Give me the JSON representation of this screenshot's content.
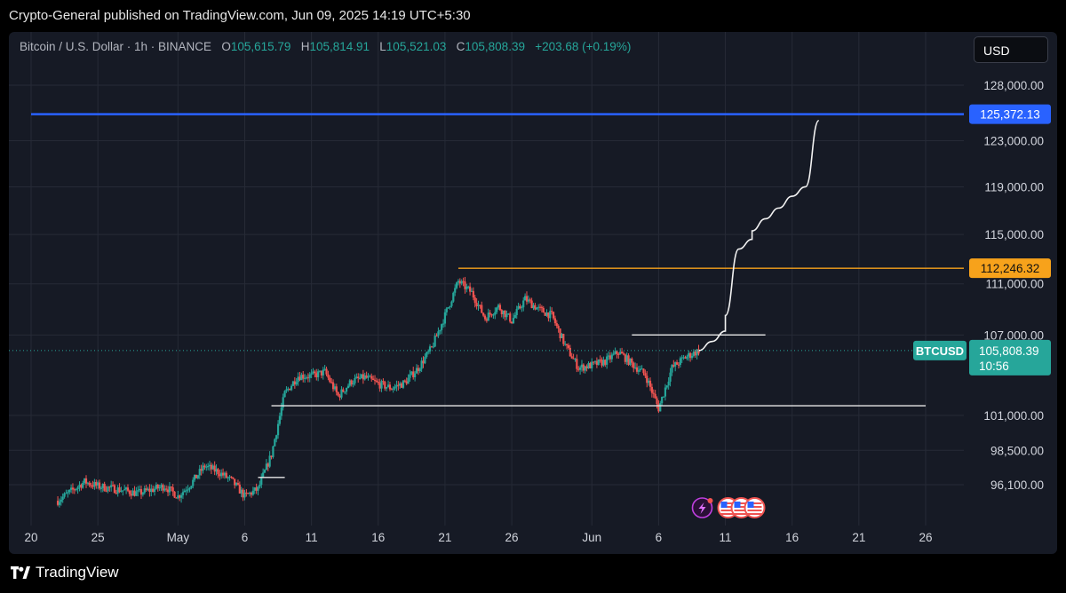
{
  "header": {
    "published": "Crypto-General published on TradingView.com, Jun 09, 2025 14:19 UTC+5:30"
  },
  "legend": {
    "symbol": "Bitcoin / U.S. Dollar · 1h · BINANCE",
    "o_label": "O",
    "o_value": "105,615.79",
    "h_label": "H",
    "h_value": "105,814.91",
    "l_label": "L",
    "l_value": "105,521.03",
    "c_label": "C",
    "c_value": "105,808.39",
    "change": "+203.68 (+0.19%)"
  },
  "currency_button": "USD",
  "footer": {
    "brand": "TradingView"
  },
  "colors": {
    "panel_bg": "#161a25",
    "up": "#26a69a",
    "down": "#ef5350",
    "blue_line": "#2962ff",
    "orange_line": "#f7a21b",
    "grid": "#262a36"
  },
  "chart_data": {
    "type": "candlestick",
    "symbol": "BTCUSD",
    "interval": "1h",
    "y_scale": "log",
    "ylim": [
      94000,
      131000
    ],
    "price_ticks": [
      "128,000.00",
      "123,000.00",
      "119,000.00",
      "115,000.00",
      "111,000.00",
      "107,000.00",
      "101,000.00",
      "98,500.00",
      "96,100.00"
    ],
    "price_tick_values": [
      128000,
      123000,
      119000,
      115000,
      111000,
      107000,
      101000,
      98500,
      96100
    ],
    "x_ticks": [
      "20",
      "25",
      "May",
      "6",
      "11",
      "16",
      "21",
      "26",
      "Jun",
      "6",
      "11",
      "16",
      "21",
      "26"
    ],
    "x_tick_dates": [
      "2025-04-20",
      "2025-04-25",
      "2025-05-01",
      "2025-05-06",
      "2025-05-11",
      "2025-05-16",
      "2025-05-21",
      "2025-05-26",
      "2025-06-01",
      "2025-06-06",
      "2025-06-11",
      "2025-06-16",
      "2025-06-21",
      "2025-06-26"
    ],
    "x_start": "2025-04-20",
    "x_end": "2025-06-29",
    "price_path": [
      [
        "2025-04-22",
        95000
      ],
      [
        "2025-04-24",
        96300
      ],
      [
        "2025-04-25",
        96000
      ],
      [
        "2025-04-27",
        95700
      ],
      [
        "2025-04-28",
        95500
      ],
      [
        "2025-04-30",
        96000
      ],
      [
        "2025-05-01",
        95300
      ],
      [
        "2025-05-02",
        96200
      ],
      [
        "2025-05-03",
        97400
      ],
      [
        "2025-05-04",
        97000
      ],
      [
        "2025-05-05",
        96400
      ],
      [
        "2025-05-06",
        95300
      ],
      [
        "2025-05-07",
        95800
      ],
      [
        "2025-05-08",
        98200
      ],
      [
        "2025-05-09",
        102600
      ],
      [
        "2025-05-10",
        103900
      ],
      [
        "2025-05-11",
        103900
      ],
      [
        "2025-05-12",
        104200
      ],
      [
        "2025-05-13",
        102400
      ],
      [
        "2025-05-14",
        103500
      ],
      [
        "2025-05-15",
        103800
      ],
      [
        "2025-05-16",
        103300
      ],
      [
        "2025-05-17",
        103000
      ],
      [
        "2025-05-18",
        103400
      ],
      [
        "2025-05-19",
        104500
      ],
      [
        "2025-05-20",
        106000
      ],
      [
        "2025-05-21",
        108500
      ],
      [
        "2025-05-22",
        111200
      ],
      [
        "2025-05-23",
        110300
      ],
      [
        "2025-05-24",
        108300
      ],
      [
        "2025-05-25",
        109200
      ],
      [
        "2025-05-26",
        108100
      ],
      [
        "2025-05-27",
        109800
      ],
      [
        "2025-05-28",
        109000
      ],
      [
        "2025-05-29",
        108500
      ],
      [
        "2025-05-30",
        106200
      ],
      [
        "2025-05-31",
        104500
      ],
      [
        "2025-06-01",
        104700
      ],
      [
        "2025-06-02",
        105000
      ],
      [
        "2025-06-03",
        105700
      ],
      [
        "2025-06-04",
        104800
      ],
      [
        "2025-06-05",
        104000
      ],
      [
        "2025-06-06",
        101500
      ],
      [
        "2025-06-07",
        104500
      ],
      [
        "2025-06-08",
        105300
      ],
      [
        "2025-06-09",
        105808
      ]
    ],
    "lines": [
      {
        "name": "resistance-blue",
        "price": 125372.13,
        "label": "125,372.13",
        "color": "#2962ff",
        "from": "2025-04-20",
        "to": "2025-06-29"
      },
      {
        "name": "resistance-orange",
        "price": 112246.32,
        "label": "112,246.32",
        "color": "#f7a21b",
        "from": "2025-05-22",
        "to": "2025-06-29"
      },
      {
        "name": "support-white",
        "price": 101700,
        "from": "2025-05-08",
        "to": "2025-06-26"
      },
      {
        "name": "neckline-white",
        "price": 107000,
        "from": "2025-06-04",
        "to": "2025-06-14"
      },
      {
        "name": "marker-white",
        "price": 96600,
        "from": "2025-05-07",
        "to": "2025-05-09"
      }
    ],
    "projection": [
      [
        "2025-06-09",
        105808
      ],
      [
        "2025-06-10",
        106500
      ],
      [
        "2025-06-11",
        107300
      ],
      [
        "2025-06-11",
        108500
      ],
      [
        "2025-06-12",
        113800
      ],
      [
        "2025-06-13",
        114600
      ],
      [
        "2025-06-13",
        115300
      ],
      [
        "2025-06-14",
        116300
      ],
      [
        "2025-06-15",
        117200
      ],
      [
        "2025-06-16",
        118200
      ],
      [
        "2025-06-17",
        119000
      ],
      [
        "2025-06-18",
        124800
      ]
    ],
    "current_price": {
      "symbol": "BTCUSD",
      "price": 105808.39,
      "label": "105,808.39",
      "countdown": "10:56"
    }
  }
}
